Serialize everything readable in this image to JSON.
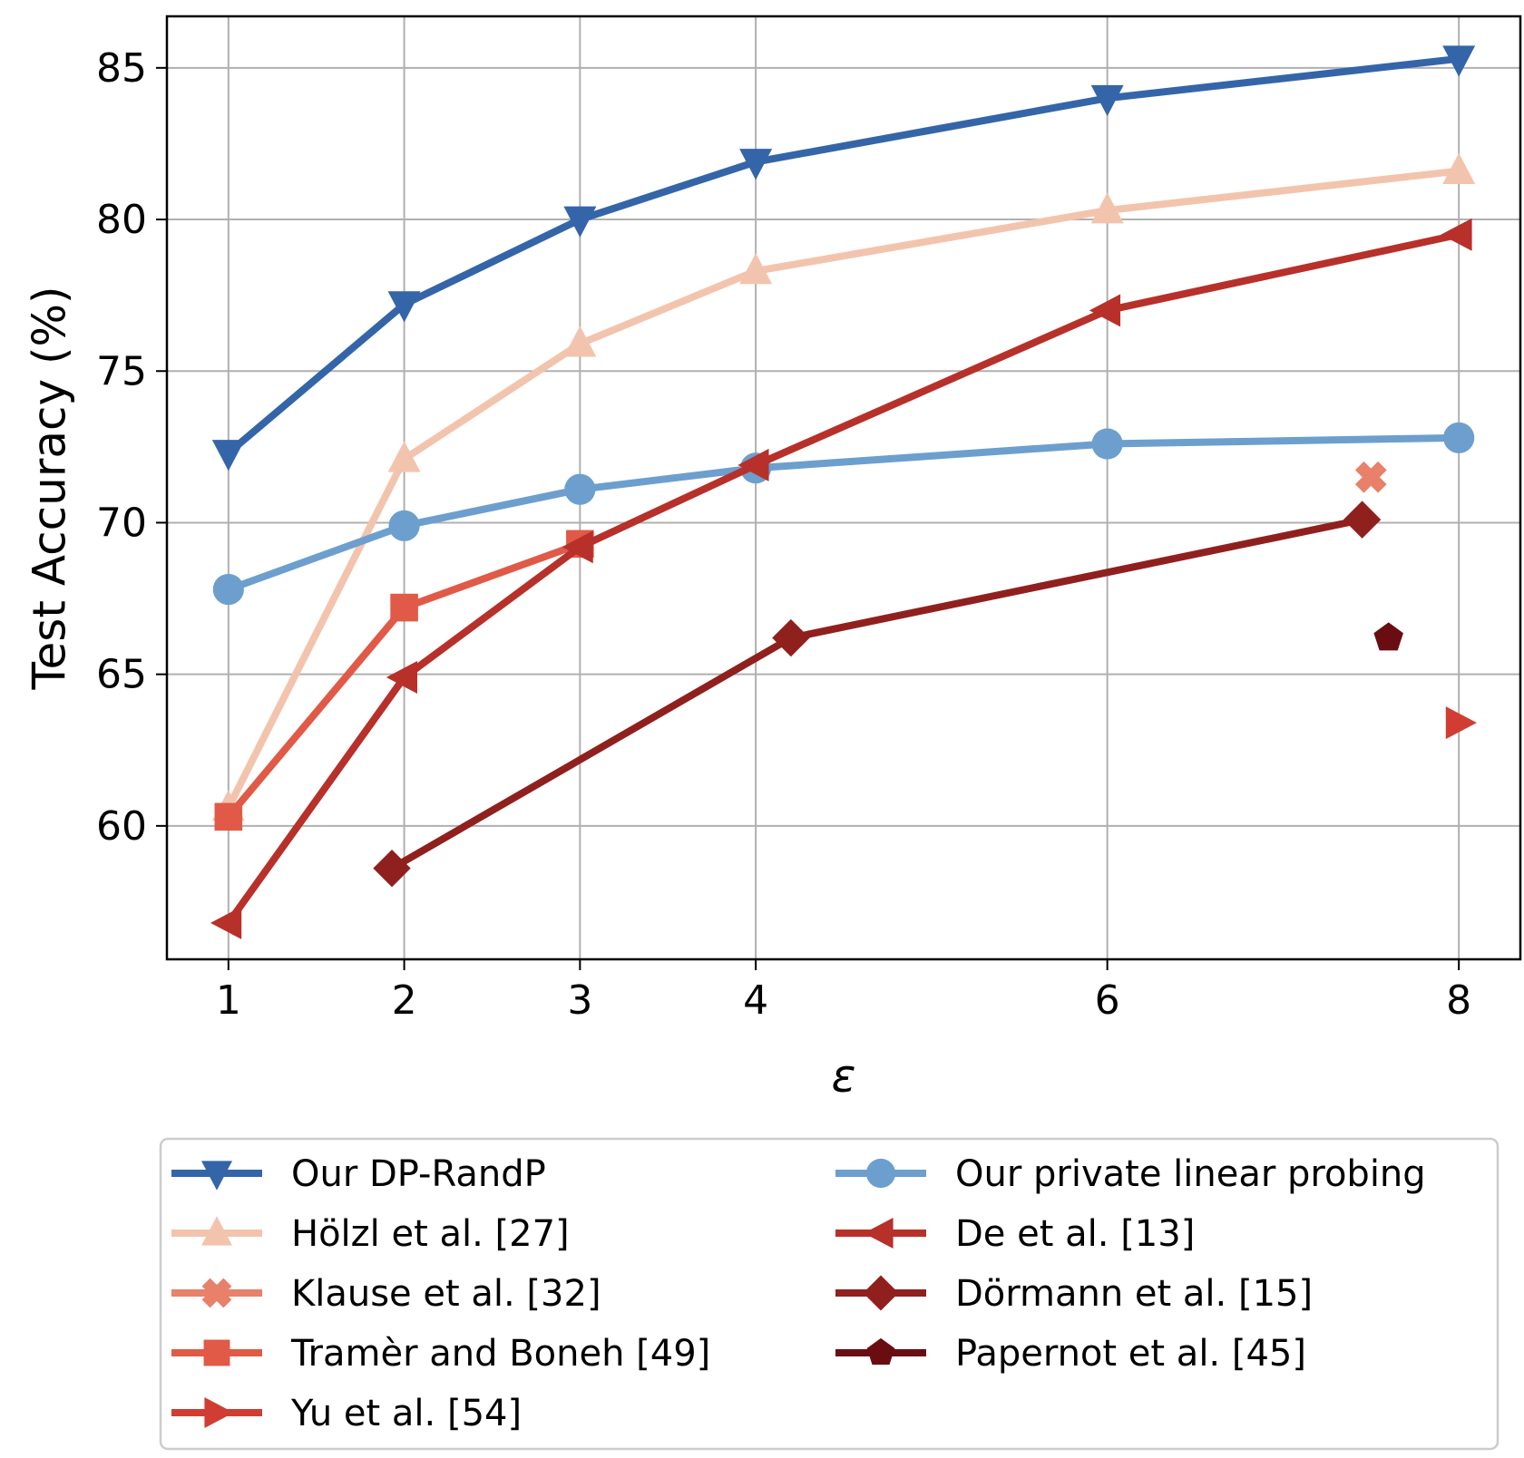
{
  "chart_data": {
    "type": "line",
    "xlabel": "ε",
    "ylabel": "Test Accuracy (%)",
    "xlim": [
      0.65,
      8.35
    ],
    "ylim": [
      55.6,
      86.7
    ],
    "xticks": [
      1,
      2,
      3,
      4,
      6,
      8
    ],
    "yticks": [
      60,
      65,
      70,
      75,
      80,
      85
    ],
    "grid": true,
    "legend_position": "bottom",
    "series": [
      {
        "name": "Our DP-RandP",
        "color": "#3465a8",
        "marker": "triangle-down",
        "x": [
          1,
          2,
          3,
          4,
          6,
          8
        ],
        "y": [
          72.3,
          77.2,
          80.0,
          81.9,
          84.0,
          85.3
        ]
      },
      {
        "name": "Hölzl et al. [27]",
        "color": "#f3c4ad",
        "marker": "triangle-up",
        "x": [
          1,
          2,
          3,
          4,
          6,
          8
        ],
        "y": [
          60.6,
          72.1,
          75.9,
          78.3,
          80.3,
          81.6
        ]
      },
      {
        "name": "Klause et al. [32]",
        "color": "#e8806a",
        "marker": "x",
        "x": [
          7.5
        ],
        "y": [
          71.5
        ]
      },
      {
        "name": "Tramèr and Boneh [49]",
        "color": "#e05a47",
        "marker": "square",
        "x": [
          1,
          2,
          3
        ],
        "y": [
          60.3,
          67.2,
          69.3
        ]
      },
      {
        "name": "Yu et al. [54]",
        "color": "#d03d33",
        "marker": "triangle-right",
        "x": [
          8
        ],
        "y": [
          63.4
        ]
      },
      {
        "name": "Our private linear probing",
        "color": "#6c9fcd",
        "marker": "circle",
        "x": [
          1,
          2,
          3,
          4,
          6,
          8
        ],
        "y": [
          67.8,
          69.9,
          71.1,
          71.8,
          72.6,
          72.8
        ]
      },
      {
        "name": "De et al. [13]",
        "color": "#b8302a",
        "marker": "triangle-left",
        "x": [
          1,
          2,
          3,
          4,
          6,
          8
        ],
        "y": [
          56.8,
          64.9,
          69.2,
          71.9,
          77.0,
          79.5
        ]
      },
      {
        "name": "Dörmann et al. [15]",
        "color": "#90201e",
        "marker": "diamond",
        "x": [
          1.93,
          4.2,
          7.45
        ],
        "y": [
          58.6,
          66.2,
          70.1
        ]
      },
      {
        "name": "Papernot et al. [45]",
        "color": "#6a0d12",
        "marker": "pentagon",
        "x": [
          7.6
        ],
        "y": [
          66.2
        ]
      }
    ]
  }
}
